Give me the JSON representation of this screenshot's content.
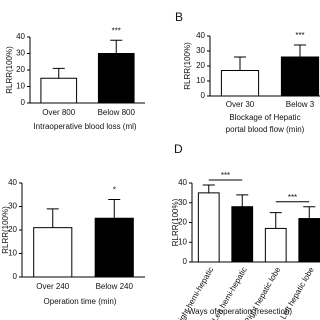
{
  "chart_data": [
    {
      "type": "bar",
      "y_label": "RLRR(100%)",
      "x_label": "Intraoperative blood loss (ml)",
      "categories": [
        "Over 800",
        "Below 800"
      ],
      "values": [
        15,
        30
      ],
      "errors": [
        6,
        8
      ],
      "colors": [
        "#ffffff",
        "#000000"
      ],
      "ylim": [
        0,
        40
      ],
      "yticks": [
        0,
        10,
        20,
        30,
        40
      ],
      "annotations": [
        {
          "text": "***",
          "over": [
            1
          ]
        }
      ]
    },
    {
      "type": "bar",
      "panel_label": "B",
      "y_label": "RLRR(100%)",
      "x_label": [
        "Blockage of Hepatic",
        "portal blood flow (min)"
      ],
      "categories": [
        "Over 30",
        "Below 3"
      ],
      "values": [
        17,
        26
      ],
      "errors": [
        9,
        8
      ],
      "colors": [
        "#ffffff",
        "#000000"
      ],
      "ylim": [
        0,
        40
      ],
      "yticks": [
        0,
        10,
        20,
        30,
        40
      ],
      "annotations": [
        {
          "text": "***",
          "over": [
            1
          ]
        }
      ]
    },
    {
      "type": "bar",
      "y_label": "RLRR(100%)",
      "x_label": "Operation time (min)",
      "categories": [
        "Over 240",
        "Below 240"
      ],
      "values": [
        21,
        25
      ],
      "errors": [
        8,
        8
      ],
      "colors": [
        "#ffffff",
        "#000000"
      ],
      "ylim": [
        0,
        40
      ],
      "yticks": [
        0,
        10,
        20,
        30,
        40
      ],
      "annotations": [
        {
          "text": "*",
          "over": [
            1
          ]
        }
      ]
    },
    {
      "type": "bar",
      "panel_label": "D",
      "y_label": "RLRR(100%)",
      "x_label": "Ways of operation (resection)",
      "categories": [
        "Right hemi-hepatic",
        "Left hemi-hepatic",
        "Right hepatic lobe",
        "Left hepatic lobe"
      ],
      "values": [
        35,
        28,
        17,
        22
      ],
      "errors": [
        4,
        6,
        8,
        6
      ],
      "colors": [
        "#ffffff",
        "#000000",
        "#ffffff",
        "#000000"
      ],
      "ylim": [
        0,
        40
      ],
      "yticks": [
        0,
        10,
        20,
        30,
        40
      ],
      "annotations": [
        {
          "text": "***",
          "over": [
            0,
            1
          ]
        },
        {
          "text": "***",
          "over": [
            2,
            3
          ]
        }
      ]
    }
  ]
}
